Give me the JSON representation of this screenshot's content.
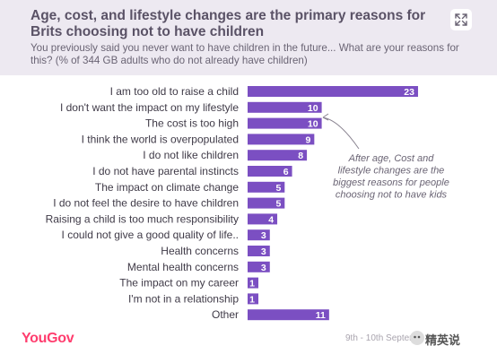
{
  "header": {
    "title": "Age, cost, and lifestyle changes are the primary reasons for Brits choosing not to have children",
    "subtitle": "You previously said you never want to have children in the future... What are your reasons for this? (% of 344 GB adults who do not already have children)",
    "expand_icon": "expand-arrows-icon",
    "background": "#ede9f1"
  },
  "chart_data": {
    "type": "bar",
    "orientation": "horizontal",
    "categories": [
      "I am too old to raise a child",
      "I don't want the impact on my lifestyle",
      "The cost is too high",
      "I think the world is overpopulated",
      "I do not like children",
      "I do not have parental instincts",
      "The impact on climate change",
      "I do not feel the desire to have children",
      "Raising a child is too much responsibility",
      "I could not give a good quality of life..",
      "Health concerns",
      "Mental health concerns",
      "The impact on my career",
      "I'm not in a relationship",
      "Other"
    ],
    "values": [
      23,
      10,
      10,
      9,
      8,
      6,
      5,
      5,
      4,
      3,
      3,
      3,
      1,
      1,
      11
    ],
    "data_labels": [
      "23",
      "10",
      "10",
      "9",
      "8",
      "6",
      "5",
      "5",
      "4",
      "3",
      "3",
      "3",
      "1",
      "1",
      "11"
    ],
    "xlim": [
      0,
      25
    ],
    "bar_color": "#7b4fc2",
    "annotation": "After age, Cost and lifestyle changes are the biggest reasons for people choosing not to have kids",
    "grid": false
  },
  "footer": {
    "logo": "YouGov",
    "logo_color": "#ff3d6e",
    "dates": "9th - 10th Septem",
    "watermark": "精英说",
    "watermark_icon": "wechat-icon"
  }
}
